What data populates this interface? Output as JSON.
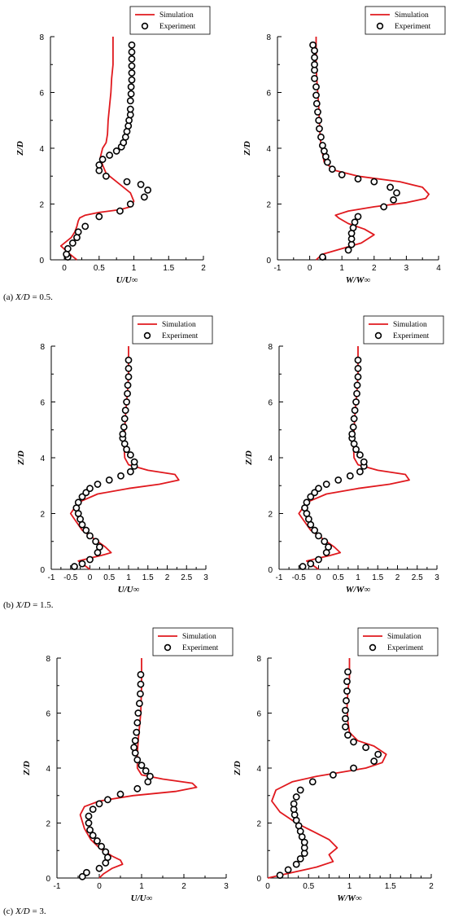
{
  "legend": {
    "simulation": "Simulation",
    "experiment": "Experiment"
  },
  "rows": [
    {
      "caption_prefix": "(a)",
      "caption_math": "X/D",
      "caption_value": "= 0.5."
    },
    {
      "caption_prefix": "(b)",
      "caption_math": "X/D",
      "caption_value": "= 1.5."
    },
    {
      "caption_prefix": "(c)",
      "caption_math": "X/D",
      "caption_value": "= 3."
    }
  ],
  "colors": {
    "simulation": "#e0191e",
    "experiment": "#000000",
    "axis": "#000000"
  },
  "chart_data": [
    {
      "type": "line",
      "panel": "a-U",
      "xlabel": "U/U∞",
      "ylabel": "Z/D",
      "xlim": [
        -0.2,
        2
      ],
      "ylim": [
        0,
        8
      ],
      "xticks": [
        0,
        0.5,
        1,
        1.5,
        2
      ],
      "xtick_labels": [
        "0",
        "0.5",
        "1",
        "1.5",
        "2"
      ],
      "yticks": [
        0,
        2,
        4,
        6,
        8
      ],
      "ytick_labels": [
        "0",
        "2",
        "4",
        "6",
        "8"
      ],
      "legend": "top-right",
      "series": [
        {
          "name": "Simulation",
          "style": "line",
          "x": [
            0.18,
            0.08,
            -0.05,
            0.1,
            0.15,
            0.18,
            0.2,
            0.22,
            0.3,
            0.5,
            0.8,
            0.95,
            1.0,
            0.95,
            0.75,
            0.6,
            0.55,
            0.52,
            0.55,
            0.6,
            0.62,
            0.63,
            0.65,
            0.67,
            0.68,
            0.7,
            0.7
          ],
          "y": [
            0,
            0.2,
            0.5,
            0.8,
            1.0,
            1.2,
            1.4,
            1.5,
            1.6,
            1.7,
            1.8,
            1.9,
            2.1,
            2.4,
            2.8,
            3.1,
            3.4,
            3.7,
            4.0,
            4.2,
            4.5,
            5.0,
            5.5,
            6.0,
            6.5,
            7.0,
            8.0
          ]
        },
        {
          "name": "Experiment",
          "style": "markers",
          "x": [
            0.05,
            0.03,
            0.05,
            0.12,
            0.18,
            0.2,
            0.3,
            0.5,
            0.8,
            0.95,
            1.15,
            1.2,
            1.1,
            0.9,
            0.6,
            0.5,
            0.5,
            0.55,
            0.65,
            0.75,
            0.82,
            0.85,
            0.88,
            0.9,
            0.92,
            0.93,
            0.95,
            0.95,
            0.95,
            0.96,
            0.96,
            0.97,
            0.97,
            0.97,
            0.97,
            0.97,
            0.97
          ],
          "y": [
            0.1,
            0.2,
            0.4,
            0.6,
            0.8,
            1.0,
            1.2,
            1.55,
            1.75,
            2.0,
            2.25,
            2.5,
            2.7,
            2.8,
            3.0,
            3.2,
            3.4,
            3.6,
            3.75,
            3.9,
            4.05,
            4.2,
            4.4,
            4.6,
            4.8,
            5.0,
            5.2,
            5.4,
            5.7,
            5.95,
            6.2,
            6.45,
            6.7,
            6.95,
            7.2,
            7.45,
            7.7
          ]
        }
      ]
    },
    {
      "type": "line",
      "panel": "a-W",
      "xlabel": "W/W∞",
      "ylabel": "Z/D",
      "xlim": [
        -1,
        4
      ],
      "ylim": [
        0,
        8
      ],
      "xticks": [
        -1,
        0,
        1,
        2,
        3,
        4
      ],
      "xtick_labels": [
        "-1",
        "0",
        "1",
        "2",
        "3",
        "4"
      ],
      "yticks": [
        0,
        2,
        4,
        6,
        8
      ],
      "ytick_labels": [
        "0",
        "2",
        "4",
        "6",
        "8"
      ],
      "legend": "top-right",
      "series": [
        {
          "name": "Simulation",
          "style": "line",
          "x": [
            0.2,
            0.4,
            1.0,
            1.6,
            2.0,
            1.7,
            1.2,
            0.9,
            0.8,
            1.2,
            2.0,
            3.0,
            3.6,
            3.7,
            3.5,
            2.8,
            1.5,
            0.8,
            0.45,
            0.4,
            0.35,
            0.32,
            0.3,
            0.28,
            0.25,
            0.22,
            0.2,
            0.2
          ],
          "y": [
            0,
            0.2,
            0.4,
            0.6,
            0.9,
            1.1,
            1.3,
            1.5,
            1.6,
            1.75,
            1.9,
            2.05,
            2.2,
            2.35,
            2.6,
            2.8,
            3.0,
            3.2,
            3.5,
            3.8,
            4.1,
            4.5,
            5.0,
            5.5,
            6.0,
            6.5,
            7.0,
            8.0
          ]
        },
        {
          "name": "Experiment",
          "style": "markers",
          "x": [
            0.4,
            1.2,
            1.3,
            1.3,
            1.3,
            1.35,
            1.4,
            1.5,
            2.3,
            2.6,
            2.7,
            2.5,
            2.0,
            1.5,
            1.0,
            0.7,
            0.55,
            0.5,
            0.45,
            0.4,
            0.35,
            0.3,
            0.28,
            0.25,
            0.22,
            0.2,
            0.2,
            0.15,
            0.15,
            0.15,
            0.15,
            0.15,
            0.1
          ],
          "y": [
            0.1,
            0.35,
            0.55,
            0.75,
            0.95,
            1.15,
            1.35,
            1.55,
            1.9,
            2.15,
            2.4,
            2.6,
            2.8,
            2.9,
            3.05,
            3.25,
            3.5,
            3.7,
            3.9,
            4.1,
            4.4,
            4.7,
            5.0,
            5.3,
            5.6,
            5.9,
            6.2,
            6.5,
            6.8,
            7.0,
            7.25,
            7.5,
            7.7
          ]
        }
      ]
    },
    {
      "type": "line",
      "panel": "b-U",
      "xlabel": "U/U∞",
      "ylabel": "Z/D",
      "xlim": [
        -1,
        3
      ],
      "ylim": [
        0,
        8
      ],
      "xticks": [
        -1,
        -0.5,
        0,
        0.5,
        1,
        1.5,
        2,
        2.5,
        3
      ],
      "xtick_labels": [
        "-1",
        "-0.5",
        "0",
        "0.5",
        "1",
        "1.5",
        "2",
        "2.5",
        "3"
      ],
      "yticks": [
        0,
        2,
        4,
        6,
        8
      ],
      "ytick_labels": [
        "0",
        "2",
        "4",
        "6",
        "8"
      ],
      "legend": "top-right",
      "series": [
        {
          "name": "Simulation",
          "style": "line",
          "x": [
            0.0,
            -0.2,
            -0.3,
            0.0,
            0.3,
            0.55,
            0.4,
            0.1,
            -0.2,
            -0.4,
            -0.5,
            -0.3,
            0.2,
            1.0,
            1.8,
            2.3,
            2.2,
            1.5,
            1.0,
            0.9,
            0.88,
            0.9,
            0.92,
            0.95,
            0.98,
            1.0,
            1.0
          ],
          "y": [
            0,
            0.2,
            0.3,
            0.4,
            0.5,
            0.6,
            0.8,
            1.1,
            1.4,
            1.8,
            2.0,
            2.4,
            2.7,
            2.9,
            3.05,
            3.2,
            3.4,
            3.55,
            3.75,
            4.0,
            4.5,
            5.0,
            5.5,
            6.0,
            6.5,
            7.0,
            8.0
          ]
        },
        {
          "name": "Experiment",
          "style": "markers",
          "x": [
            -0.4,
            -0.2,
            0.0,
            0.2,
            0.25,
            0.15,
            0.0,
            -0.1,
            -0.2,
            -0.25,
            -0.3,
            -0.35,
            -0.3,
            -0.2,
            -0.1,
            0.0,
            0.2,
            0.5,
            0.8,
            1.05,
            1.15,
            1.15,
            1.05,
            0.95,
            0.9,
            0.85,
            0.85,
            0.88,
            0.9,
            0.92,
            0.95,
            0.97,
            0.98,
            1.0,
            1.0,
            1.0
          ],
          "y": [
            0.1,
            0.2,
            0.35,
            0.6,
            0.8,
            1.0,
            1.2,
            1.4,
            1.6,
            1.8,
            2.0,
            2.2,
            2.4,
            2.6,
            2.75,
            2.9,
            3.05,
            3.2,
            3.35,
            3.5,
            3.7,
            3.85,
            4.1,
            4.3,
            4.5,
            4.7,
            4.85,
            5.1,
            5.4,
            5.7,
            6.0,
            6.3,
            6.6,
            6.9,
            7.2,
            7.5
          ]
        }
      ]
    },
    {
      "type": "line",
      "panel": "b-W",
      "xlabel": "W/W∞",
      "ylabel": "Z/D",
      "xlim": [
        -1,
        3
      ],
      "ylim": [
        0,
        8
      ],
      "xticks": [
        -1,
        -0.5,
        0,
        0.5,
        1,
        1.5,
        2,
        2.5,
        3
      ],
      "xtick_labels": [
        "-1",
        "-0.5",
        "0",
        "0.5",
        "1",
        "1.5",
        "2",
        "2.5",
        "3"
      ],
      "yticks": [
        0,
        2,
        4,
        6,
        8
      ],
      "ytick_labels": [
        "0",
        "2",
        "4",
        "6",
        "8"
      ],
      "legend": "top-right",
      "series": [
        {
          "name": "Simulation",
          "style": "line",
          "x": [
            0.0,
            -0.2,
            -0.3,
            0.0,
            0.3,
            0.55,
            0.4,
            0.1,
            -0.2,
            -0.4,
            -0.5,
            -0.3,
            0.2,
            1.0,
            1.8,
            2.3,
            2.2,
            1.5,
            1.0,
            0.9,
            0.88,
            0.9,
            0.92,
            0.95,
            0.98,
            1.0,
            1.0
          ],
          "y": [
            0,
            0.2,
            0.3,
            0.4,
            0.5,
            0.6,
            0.8,
            1.1,
            1.4,
            1.8,
            2.0,
            2.4,
            2.7,
            2.9,
            3.05,
            3.2,
            3.4,
            3.55,
            3.75,
            4.0,
            4.5,
            5.0,
            5.5,
            6.0,
            6.5,
            7.0,
            8.0
          ]
        },
        {
          "name": "Experiment",
          "style": "markers",
          "x": [
            -0.4,
            -0.2,
            0.0,
            0.2,
            0.25,
            0.15,
            0.0,
            -0.1,
            -0.2,
            -0.25,
            -0.3,
            -0.35,
            -0.3,
            -0.2,
            -0.1,
            0.0,
            0.2,
            0.5,
            0.8,
            1.05,
            1.15,
            1.15,
            1.05,
            0.95,
            0.9,
            0.85,
            0.85,
            0.88,
            0.9,
            0.92,
            0.95,
            0.97,
            0.98,
            1.0,
            1.0,
            1.0
          ],
          "y": [
            0.1,
            0.2,
            0.35,
            0.6,
            0.8,
            1.0,
            1.2,
            1.4,
            1.6,
            1.8,
            2.0,
            2.2,
            2.4,
            2.6,
            2.75,
            2.9,
            3.05,
            3.2,
            3.35,
            3.5,
            3.7,
            3.85,
            4.1,
            4.3,
            4.5,
            4.7,
            4.85,
            5.1,
            5.4,
            5.7,
            6.0,
            6.3,
            6.6,
            6.9,
            7.2,
            7.5
          ]
        }
      ]
    },
    {
      "type": "line",
      "panel": "c-U",
      "xlabel": "U/U∞",
      "ylabel": "Z/D",
      "xlim": [
        -1,
        3
      ],
      "ylim": [
        0,
        8
      ],
      "xticks": [
        -1,
        0,
        1,
        2,
        3
      ],
      "xtick_labels": [
        "-1",
        "0",
        "1",
        "2",
        "3"
      ],
      "yticks": [
        0,
        2,
        4,
        6,
        8
      ],
      "ytick_labels": [
        "0",
        "2",
        "4",
        "6",
        "8"
      ],
      "legend": "top-right",
      "series": [
        {
          "name": "Simulation",
          "style": "line",
          "x": [
            0.0,
            0.1,
            0.3,
            0.55,
            0.5,
            0.3,
            0.0,
            -0.2,
            -0.35,
            -0.45,
            -0.35,
            0.0,
            0.8,
            1.8,
            2.3,
            2.2,
            1.5,
            1.0,
            0.9,
            0.9,
            0.92,
            0.95,
            0.98,
            1.0,
            1.0
          ],
          "y": [
            0,
            0.15,
            0.35,
            0.5,
            0.65,
            0.8,
            1.1,
            1.4,
            1.8,
            2.3,
            2.6,
            2.8,
            3.0,
            3.15,
            3.3,
            3.45,
            3.6,
            3.75,
            4.0,
            4.5,
            5.0,
            5.5,
            6.0,
            7.0,
            8.0
          ]
        },
        {
          "name": "Experiment",
          "style": "markers",
          "x": [
            -0.4,
            -0.3,
            0.0,
            0.15,
            0.2,
            0.15,
            0.05,
            -0.05,
            -0.15,
            -0.22,
            -0.25,
            -0.25,
            -0.15,
            0.0,
            0.2,
            0.5,
            0.9,
            1.15,
            1.2,
            1.1,
            1.0,
            0.9,
            0.85,
            0.82,
            0.85,
            0.88,
            0.9,
            0.92,
            0.95,
            0.97,
            0.98,
            0.98
          ],
          "y": [
            0.05,
            0.2,
            0.35,
            0.55,
            0.75,
            0.95,
            1.15,
            1.35,
            1.55,
            1.75,
            2.0,
            2.25,
            2.5,
            2.7,
            2.85,
            3.05,
            3.25,
            3.5,
            3.7,
            3.9,
            4.1,
            4.3,
            4.55,
            4.75,
            5.0,
            5.3,
            5.65,
            6.0,
            6.35,
            6.7,
            7.05,
            7.4
          ]
        }
      ]
    },
    {
      "type": "line",
      "panel": "c-W",
      "xlabel": "W/W∞",
      "ylabel": "Z/D",
      "xlim": [
        0,
        2
      ],
      "ylim": [
        0,
        8
      ],
      "xticks": [
        0,
        0.25,
        0.5,
        0.75,
        1,
        1.25,
        1.5,
        1.75,
        2
      ],
      "xtick_labels": [
        "0",
        "",
        "0.5",
        "",
        "1",
        "",
        "1.5",
        "",
        "2"
      ],
      "yticks": [
        0,
        2,
        4,
        6,
        8
      ],
      "ytick_labels": [
        "0",
        "2",
        "4",
        "6",
        "8"
      ],
      "legend": "top-right",
      "series": [
        {
          "name": "Simulation",
          "style": "line",
          "x": [
            0.0,
            0.3,
            0.6,
            0.8,
            0.75,
            0.85,
            0.75,
            0.55,
            0.35,
            0.15,
            0.05,
            0.1,
            0.3,
            0.6,
            0.9,
            1.2,
            1.4,
            1.45,
            1.3,
            1.1,
            1.0,
            0.98,
            0.97,
            0.98,
            1.0,
            1.0
          ],
          "y": [
            0,
            0.2,
            0.4,
            0.6,
            0.85,
            1.1,
            1.4,
            1.7,
            2.0,
            2.4,
            2.8,
            3.2,
            3.5,
            3.7,
            3.85,
            4.0,
            4.2,
            4.5,
            4.8,
            5.0,
            5.3,
            5.7,
            6.2,
            6.8,
            7.3,
            8.0
          ]
        },
        {
          "name": "Experiment",
          "style": "markers",
          "x": [
            0.15,
            0.25,
            0.35,
            0.4,
            0.45,
            0.45,
            0.45,
            0.42,
            0.4,
            0.38,
            0.35,
            0.33,
            0.32,
            0.32,
            0.35,
            0.4,
            0.55,
            0.8,
            1.05,
            1.3,
            1.35,
            1.2,
            1.05,
            0.98,
            0.95,
            0.95,
            0.95,
            0.96,
            0.97,
            0.97,
            0.98
          ],
          "y": [
            0.1,
            0.3,
            0.5,
            0.7,
            0.9,
            1.1,
            1.3,
            1.5,
            1.7,
            1.9,
            2.1,
            2.3,
            2.5,
            2.7,
            2.95,
            3.2,
            3.5,
            3.75,
            4.0,
            4.25,
            4.5,
            4.75,
            4.95,
            5.2,
            5.5,
            5.8,
            6.1,
            6.45,
            6.8,
            7.15,
            7.5
          ]
        }
      ]
    }
  ]
}
